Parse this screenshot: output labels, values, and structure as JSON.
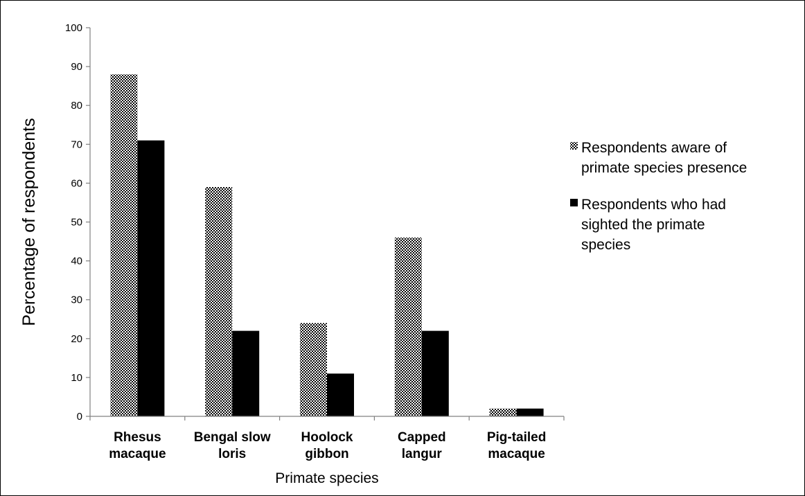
{
  "chart_data": {
    "type": "bar",
    "title": "",
    "xlabel": "Primate species",
    "ylabel": "Percentage of respondents",
    "categories": [
      [
        "Rhesus",
        "macaque"
      ],
      [
        "Bengal slow",
        "loris"
      ],
      [
        "Hoolock",
        "gibbon"
      ],
      [
        "Capped",
        "langur"
      ],
      [
        "Pig-tailed",
        "macaque"
      ]
    ],
    "series": [
      {
        "name": [
          "Respondents aware of",
          "primate species presence"
        ],
        "values": [
          88,
          59,
          24,
          46,
          2
        ],
        "fill": "checkered",
        "color": "#000000"
      },
      {
        "name": [
          "Respondents who had",
          "sighted the primate",
          "species"
        ],
        "values": [
          71,
          22,
          11,
          22,
          2
        ],
        "fill": "solid",
        "color": "#000000"
      }
    ],
    "ylim": [
      0,
      100
    ],
    "yticks": [
      0,
      10,
      20,
      30,
      40,
      50,
      60,
      70,
      80,
      90,
      100
    ],
    "grid": false,
    "legend_position": "right"
  }
}
